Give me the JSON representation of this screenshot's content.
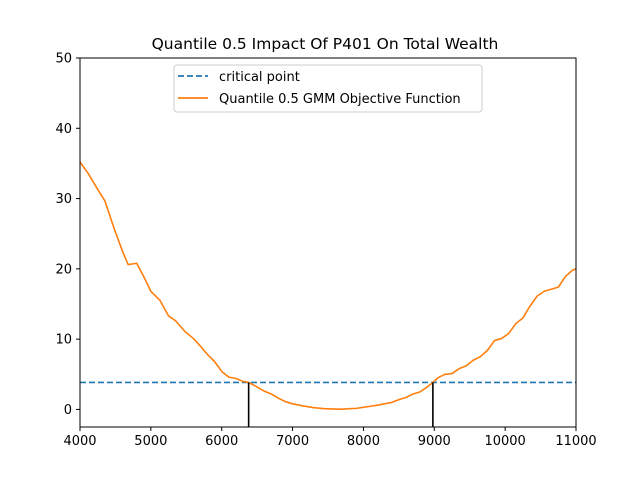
{
  "chart_data": {
    "type": "line",
    "title": "Quantile 0.5 Impact Of P401 On Total Wealth",
    "xlabel": "",
    "ylabel": "",
    "xlim": [
      4000,
      11000
    ],
    "ylim": [
      -2.5,
      50
    ],
    "xticks": [
      4000,
      5000,
      6000,
      7000,
      8000,
      9000,
      10000,
      11000
    ],
    "yticks": [
      0,
      10,
      20,
      30,
      40,
      50
    ],
    "grid": false,
    "legend_position": "upper-center",
    "series": [
      {
        "name": "critical point",
        "style": "dashed",
        "color": "#1f77b4",
        "constant_y": 3.84
      },
      {
        "name": "Quantile 0.5 GMM Objective Function",
        "style": "solid",
        "color": "#ff7f0e",
        "x": [
          4000,
          4120,
          4250,
          4350,
          4480,
          4600,
          4680,
          4800,
          4900,
          5000,
          5130,
          5250,
          5350,
          5480,
          5600,
          5700,
          5800,
          5900,
          6000,
          6100,
          6200,
          6300,
          6380,
          6500,
          6600,
          6700,
          6800,
          6900,
          7000,
          7150,
          7300,
          7450,
          7600,
          7700,
          7800,
          7900,
          8000,
          8100,
          8200,
          8300,
          8400,
          8500,
          8600,
          8700,
          8800,
          8900,
          8980,
          9050,
          9150,
          9250,
          9350,
          9450,
          9550,
          9650,
          9750,
          9850,
          9950,
          10050,
          10150,
          10250,
          10350,
          10450,
          10550,
          10650,
          10750,
          10850,
          10950,
          11000
        ],
        "y": [
          35.2,
          33.5,
          31.3,
          29.7,
          25.8,
          22.5,
          20.6,
          20.8,
          18.9,
          16.8,
          15.5,
          13.3,
          12.6,
          11.1,
          10.1,
          9.0,
          7.8,
          6.8,
          5.4,
          4.6,
          4.4,
          4.0,
          3.84,
          3.2,
          2.6,
          2.2,
          1.6,
          1.1,
          0.8,
          0.5,
          0.25,
          0.1,
          0.05,
          0.03,
          0.1,
          0.15,
          0.3,
          0.45,
          0.6,
          0.8,
          1.0,
          1.4,
          1.7,
          2.2,
          2.5,
          3.2,
          3.84,
          4.5,
          5.0,
          5.1,
          5.8,
          6.2,
          7.0,
          7.5,
          8.4,
          9.8,
          10.1,
          10.8,
          12.2,
          13.0,
          14.7,
          16.1,
          16.8,
          17.1,
          17.4,
          18.9,
          19.8,
          20.0
        ]
      }
    ],
    "vertical_markers": [
      {
        "x": 6380,
        "y_top": 3.84,
        "color": "#000000"
      },
      {
        "x": 8980,
        "y_top": 3.84,
        "color": "#000000"
      }
    ]
  }
}
